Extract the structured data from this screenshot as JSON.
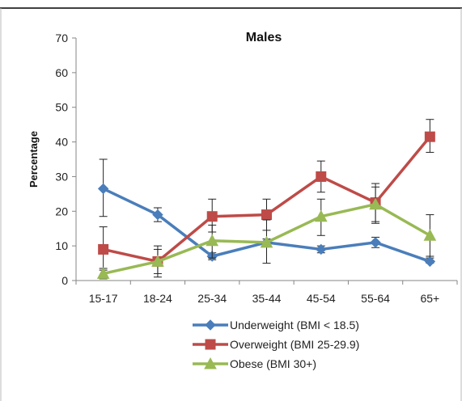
{
  "chart_data": {
    "type": "line",
    "title": "Males",
    "ylabel": "Percentage",
    "xlabel": "",
    "categories": [
      "15-17",
      "18-24",
      "25-34",
      "35-44",
      "45-54",
      "55-64",
      "65+"
    ],
    "ylim": [
      0,
      70
    ],
    "yticks": [
      0,
      10,
      20,
      30,
      40,
      50,
      60,
      70
    ],
    "grid": false,
    "legend_position": "bottom",
    "series": [
      {
        "name": "Underweight (BMI < 18.5)",
        "color": "#4a7ebb",
        "marker": "diamond",
        "values": [
          26.5,
          19,
          7,
          11,
          9,
          11,
          5.5
        ],
        "error_low": [
          18.5,
          17,
          6,
          10,
          8,
          9.5,
          5
        ],
        "error_high": [
          35,
          21,
          8,
          12,
          10,
          12.5,
          6.5
        ]
      },
      {
        "name": "Overweight (BMI 25-29.9)",
        "color": "#be4b48",
        "marker": "square",
        "values": [
          9,
          5.5,
          18.5,
          19,
          30,
          22.5,
          41.5
        ],
        "error_low": [
          3,
          1,
          14,
          14.5,
          25.5,
          17,
          37
        ],
        "error_high": [
          15.5,
          10,
          23.5,
          23.5,
          34.5,
          28,
          46.5
        ]
      },
      {
        "name": "Obese (BMI 30+)",
        "color": "#98b954",
        "marker": "triangle",
        "values": [
          2,
          5.5,
          11.5,
          11,
          18.5,
          22,
          13
        ],
        "error_low": [
          0.5,
          2,
          6.5,
          5,
          13,
          16.5,
          7
        ],
        "error_high": [
          3.5,
          9,
          16,
          17.5,
          23.5,
          27,
          19
        ]
      }
    ]
  }
}
